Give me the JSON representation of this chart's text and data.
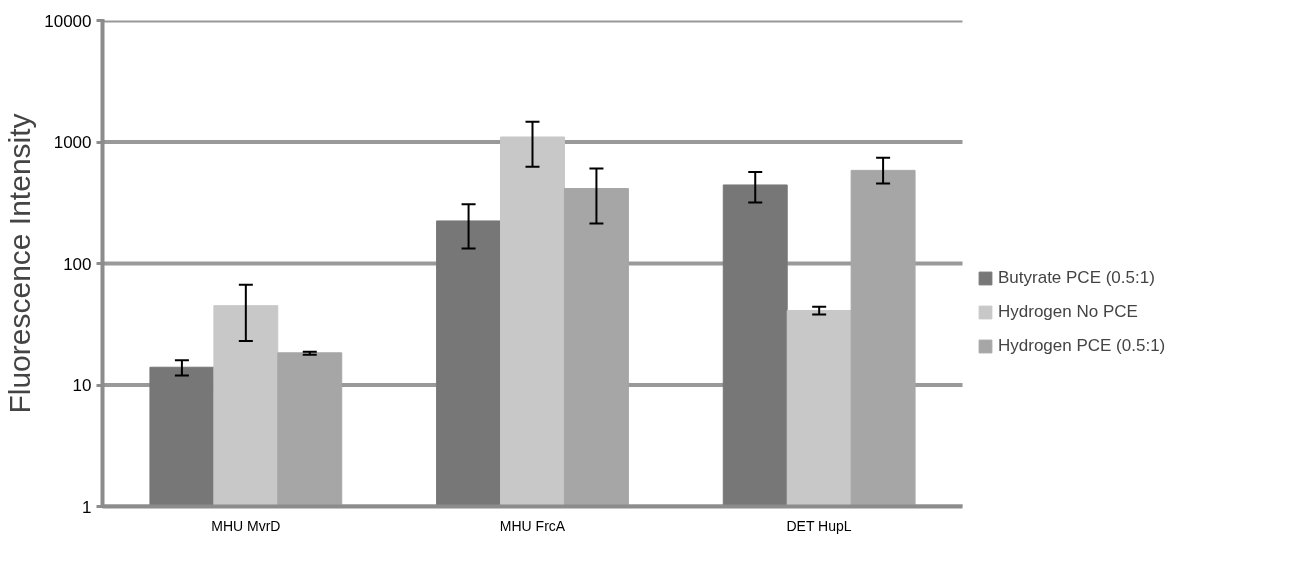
{
  "chart_data": {
    "type": "bar",
    "ylabel": "Fluorescence Intensity",
    "categories": [
      "MHU MvrD",
      "MHU FrcA",
      "DET HupL"
    ],
    "series": [
      {
        "name": "Butyrate PCE (0.5:1)",
        "color": "#777777",
        "values": [
          14,
          224,
          443
        ],
        "errors": [
          [
            12,
            16
          ],
          [
            133,
            307
          ],
          [
            317,
            566
          ]
        ]
      },
      {
        "name": "Hydrogen No PCE",
        "color": "#c8c8c8",
        "values": [
          45,
          1100,
          41
        ],
        "errors": [
          [
            23,
            67
          ],
          [
            627,
            1470
          ],
          [
            38,
            44
          ]
        ]
      },
      {
        "name": "Hydrogen PCE (0.5:1)",
        "color": "#a6a6a6",
        "values": [
          18.4,
          414,
          584
        ],
        "errors": [
          [
            17.7,
            18.8
          ],
          [
            213,
            606
          ],
          [
            456,
            741
          ]
        ]
      }
    ],
    "log": true,
    "ylim": [
      1,
      10000
    ],
    "yticks": [
      1,
      10,
      100,
      1000,
      10000
    ],
    "grid": "y",
    "legend": "right"
  }
}
